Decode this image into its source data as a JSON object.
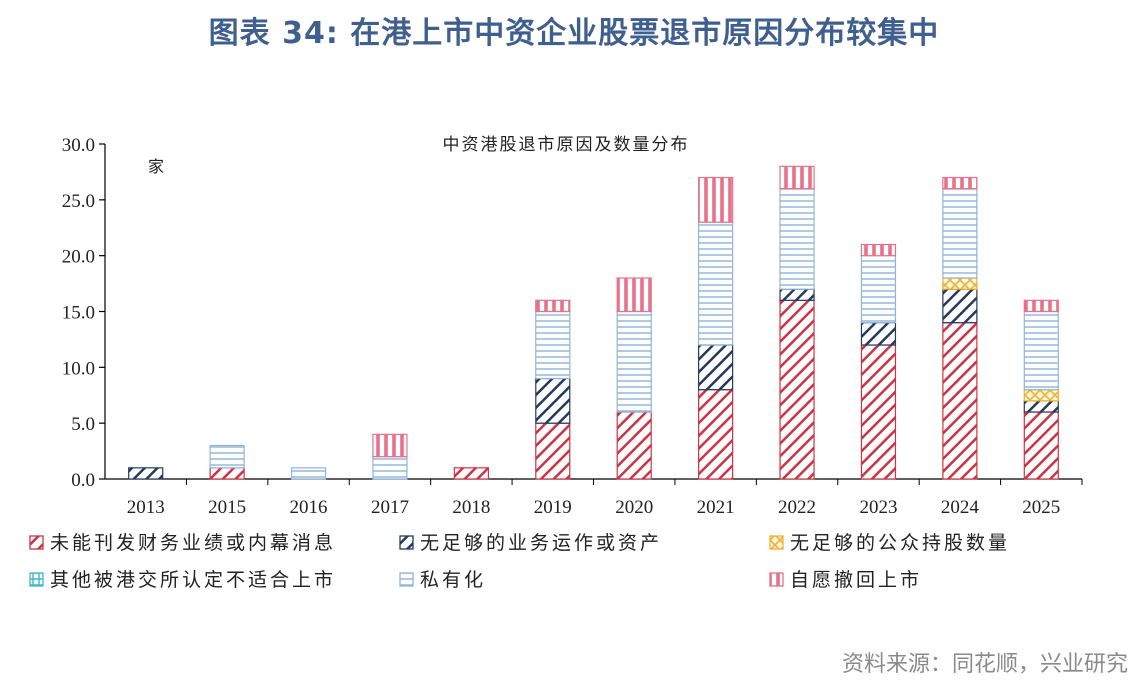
{
  "figure_title": "图表 34: 在港上市中资企业股票退市原因分布较集中",
  "source_note": "资料来源：同花顺，兴业研究",
  "colors": {
    "title": "#3f5f8f",
    "red": "#cc3344",
    "navy": "#253a5e",
    "orange": "#f0b030",
    "teal": "#3fb8c8",
    "lightblue": "#8fb4d8",
    "pink": "#e8708a"
  },
  "chart_data": {
    "type": "bar",
    "stacked": true,
    "title": "中资港股退市原因及数量分布",
    "unit": "家",
    "ylim": [
      0,
      30
    ],
    "ytick_labels": [
      "0.0",
      "5.0",
      "10.0",
      "15.0",
      "20.0",
      "25.0",
      "30.0"
    ],
    "categories": [
      "2013",
      "2015",
      "2016",
      "2017",
      "2018",
      "2019",
      "2020",
      "2021",
      "2022",
      "2023",
      "2024",
      "2025"
    ],
    "legend_position": "bottom",
    "series": [
      {
        "name": "未能刊发财务业绩或内幕消息",
        "pattern": "diag-red",
        "values": [
          0,
          1,
          0,
          0,
          1,
          5,
          6,
          8,
          16,
          12,
          14,
          6
        ]
      },
      {
        "name": "无足够的业务运作或资产",
        "pattern": "diag-navy",
        "values": [
          1,
          0,
          0,
          0,
          0,
          4,
          0,
          4,
          1,
          2,
          3,
          1
        ]
      },
      {
        "name": "无足够的公众持股数量",
        "pattern": "cross-orange",
        "values": [
          0,
          0,
          0,
          0,
          0,
          0,
          0,
          0,
          0,
          0,
          1,
          1
        ]
      },
      {
        "name": "其他被港交所认定不适合上市",
        "pattern": "grid-teal",
        "values": [
          0,
          0,
          0,
          0,
          0,
          0,
          0,
          0,
          0,
          0,
          0,
          0
        ]
      },
      {
        "name": "私有化",
        "pattern": "horiz-blue",
        "values": [
          0,
          2,
          1,
          2,
          0,
          6,
          9,
          11,
          9,
          6,
          8,
          7
        ]
      },
      {
        "name": "自愿撤回上市",
        "pattern": "vert-pink",
        "values": [
          0,
          0,
          0,
          2,
          0,
          1,
          3,
          4,
          2,
          1,
          1,
          1
        ]
      }
    ]
  }
}
